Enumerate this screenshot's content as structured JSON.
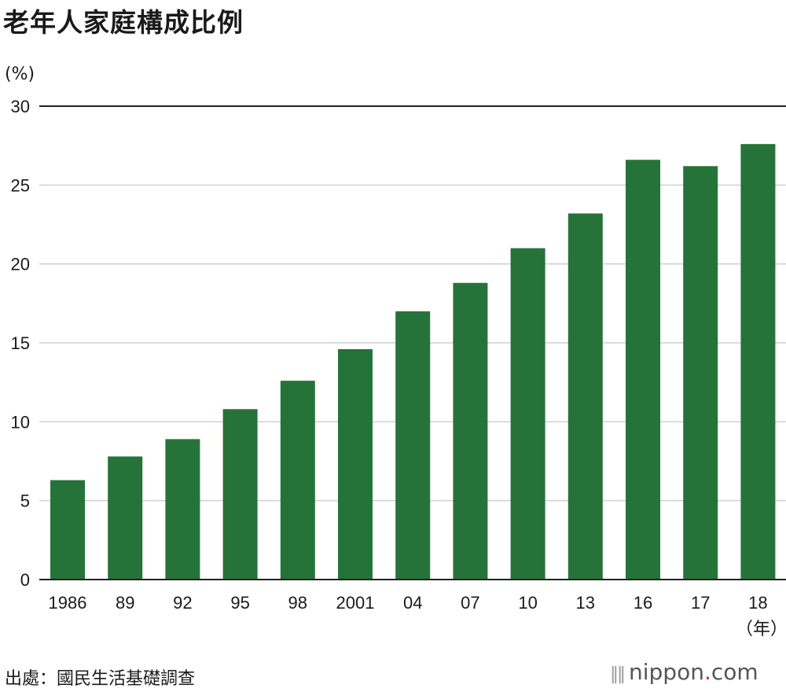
{
  "title": "老年人家庭構成比例",
  "unit_label": "(%)",
  "x_unit_label": "（年）",
  "source": "出處：國民生活基礎調查",
  "logo": {
    "name": "nippon",
    "dot": ".",
    "suffix": "com"
  },
  "colors": {
    "bar": "#26733a",
    "grid": "#cfcfcf",
    "top_line": "#222222"
  },
  "chart_data": {
    "type": "bar",
    "title": "老年人家庭構成比例",
    "ylabel": "(%)",
    "xlabel": "（年）",
    "categories": [
      "1986",
      "89",
      "92",
      "95",
      "98",
      "2001",
      "04",
      "07",
      "10",
      "13",
      "16",
      "17",
      "18"
    ],
    "values": [
      6.3,
      7.8,
      8.9,
      10.8,
      12.6,
      14.6,
      17.0,
      18.8,
      21.0,
      23.2,
      26.6,
      26.2,
      27.6
    ],
    "ylim": [
      0,
      30
    ],
    "yticks": [
      0,
      5,
      10,
      15,
      20,
      25,
      30
    ],
    "grid": true,
    "legend": "none"
  }
}
